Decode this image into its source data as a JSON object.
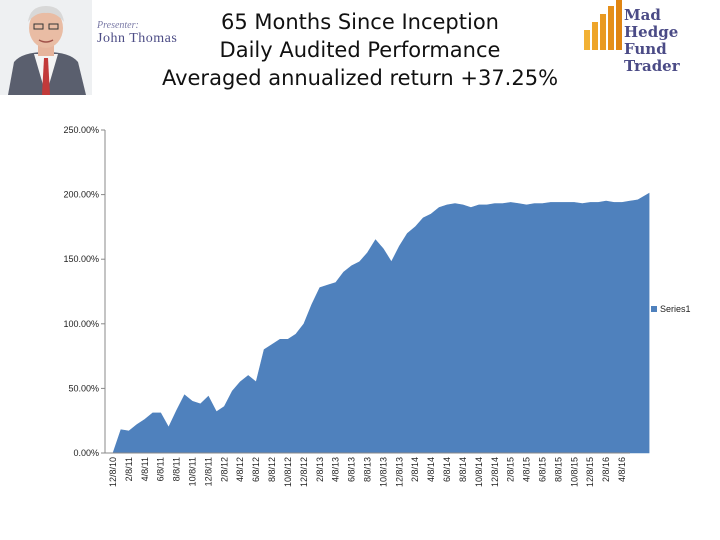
{
  "header": {
    "presenter_label": "Presenter:",
    "presenter_name": "John Thomas",
    "title_lines": [
      "65 Months Since Inception",
      "Daily Audited Performance",
      "Averaged annualized return +37.25%"
    ],
    "logo_lines": [
      "Mad Hedge",
      "Fund Trader"
    ]
  },
  "colors": {
    "series": "#4f81bd",
    "axis": "#888888",
    "logo_bars": "#f0a020"
  },
  "chart_data": {
    "type": "area",
    "title": "",
    "xlabel": "",
    "ylabel": "",
    "ylim": [
      0,
      250
    ],
    "yticks": [
      "0.00%",
      "50.00%",
      "100.00%",
      "150.00%",
      "200.00%",
      "250.00%"
    ],
    "categories": [
      "12/8/10",
      "2/8/11",
      "4/8/11",
      "6/8/11",
      "8/8/11",
      "10/8/11",
      "12/8/11",
      "2/8/12",
      "4/8/12",
      "6/8/12",
      "8/8/12",
      "10/8/12",
      "12/8/12",
      "2/8/13",
      "4/8/13",
      "6/8/13",
      "8/8/13",
      "10/8/13",
      "12/8/13",
      "2/8/14",
      "4/8/14",
      "6/8/14",
      "8/8/14",
      "10/8/14",
      "12/8/14",
      "2/8/15",
      "4/8/15",
      "6/8/15",
      "8/8/15",
      "10/8/15",
      "12/8/15",
      "2/8/16",
      "4/8/16"
    ],
    "legend": "right",
    "series": [
      {
        "name": "Series1",
        "x": [
          0,
          0.5,
          1,
          1.5,
          2,
          2.5,
          3,
          3.5,
          4,
          4.5,
          5,
          5.5,
          6,
          6.5,
          7,
          7.5,
          8,
          8.5,
          9,
          9.5,
          10,
          10.5,
          11,
          11.5,
          12,
          12.5,
          13,
          13.5,
          14,
          14.5,
          15,
          15.5,
          16,
          16.5,
          17,
          17.5,
          18,
          18.5,
          19,
          19.5,
          20,
          20.5,
          21,
          21.5,
          22,
          22.5,
          23,
          23.5,
          24,
          24.5,
          25,
          25.5,
          26,
          26.5,
          27,
          27.5,
          28,
          28.5,
          29,
          29.5,
          30,
          30.5,
          31,
          31.5,
          32,
          32.5,
          33,
          33.7
        ],
        "values": [
          0,
          18,
          17,
          22,
          26,
          31,
          31,
          20,
          33,
          45,
          40,
          38,
          44,
          32,
          36,
          48,
          55,
          60,
          55,
          80,
          84,
          88,
          88,
          92,
          100,
          115,
          128,
          130,
          132,
          140,
          145,
          148,
          155,
          165,
          158,
          148,
          160,
          170,
          175,
          182,
          185,
          190,
          192,
          193,
          192,
          190,
          192,
          192,
          193,
          193,
          194,
          193,
          192,
          193,
          193,
          194,
          194,
          194,
          194,
          193,
          194,
          194,
          195,
          194,
          194,
          195,
          196,
          201
        ]
      }
    ]
  }
}
